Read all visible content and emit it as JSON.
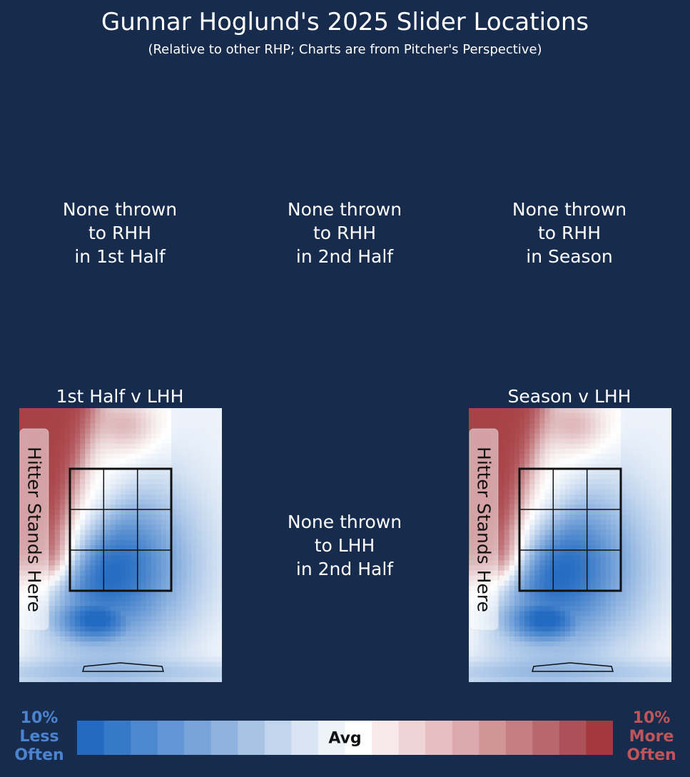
{
  "title": "Gunnar Hoglund's 2025 Slider Locations",
  "subtitle": "(Relative to other RHP; Charts are from Pitcher's Perspective)",
  "messages": {
    "rhh_first": "None thrown\nto RHH\nin 1st Half",
    "rhh_second": "None thrown\nto RHH\nin 2nd Half",
    "rhh_season": "None thrown\nto RHH\nin Season",
    "lhh_second": "None thrown\nto LHH\nin 2nd Half"
  },
  "panels": {
    "lhh_first": {
      "title": "1st Half v LHH",
      "stand_label": "Hitter Stands Here"
    },
    "lhh_season": {
      "title": "Season v LHH",
      "stand_label": "Hitter Stands Here"
    }
  },
  "legend": {
    "less_label": "10%\nLess\nOften",
    "more_label": "10%\nMore\nOften",
    "avg_label": "Avg",
    "colors": [
      "#236bc2",
      "#3679c8",
      "#4c87cf",
      "#6296d5",
      "#78a4d9",
      "#8fb3de",
      "#a8c4e5",
      "#c1d5ec",
      "#d9e5f3",
      "#eef3f9",
      "#ffffff",
      "#f8e9ea",
      "#efd4d6",
      "#e6bfc2",
      "#dca9ad",
      "#d19497",
      "#c57e83",
      "#b8676c",
      "#ab5157",
      "#a3383e"
    ]
  },
  "chart_data": [
    {
      "type": "heatmap",
      "title": "1st Half v LHH",
      "annotation": "Hitter Stands Here",
      "scale": {
        "min_label": "10% Less Often",
        "mid_label": "Avg",
        "max_label": "10% More Often",
        "min": -10,
        "max": 10
      },
      "x_range": [
        -2.5,
        2.5
      ],
      "y_range": [
        0,
        6.8
      ],
      "strike_zone": {
        "x": [
          -1.25,
          1.25
        ],
        "z": [
          2.2,
          5.2
        ]
      },
      "regions": [
        {
          "area": "top-left",
          "value": 9
        },
        {
          "area": "upper-middle",
          "value": 3
        },
        {
          "area": "top-right",
          "value": -1
        },
        {
          "area": "middle-right",
          "value": -10
        },
        {
          "area": "low",
          "value": -10
        },
        {
          "area": "bottom-edge",
          "value": -2
        }
      ]
    },
    {
      "type": "heatmap",
      "title": "Season v LHH",
      "annotation": "Hitter Stands Here",
      "scale": {
        "min_label": "10% Less Often",
        "mid_label": "Avg",
        "max_label": "10% More Often",
        "min": -10,
        "max": 10
      },
      "x_range": [
        -2.5,
        2.5
      ],
      "y_range": [
        0,
        6.8
      ],
      "strike_zone": {
        "x": [
          -1.25,
          1.25
        ],
        "z": [
          2.2,
          5.2
        ]
      },
      "regions": [
        {
          "area": "top-left",
          "value": 9
        },
        {
          "area": "upper-middle",
          "value": 3
        },
        {
          "area": "top-right",
          "value": -1
        },
        {
          "area": "middle-right",
          "value": -10
        },
        {
          "area": "low",
          "value": -10
        },
        {
          "area": "bottom-edge",
          "value": -2
        }
      ]
    }
  ]
}
